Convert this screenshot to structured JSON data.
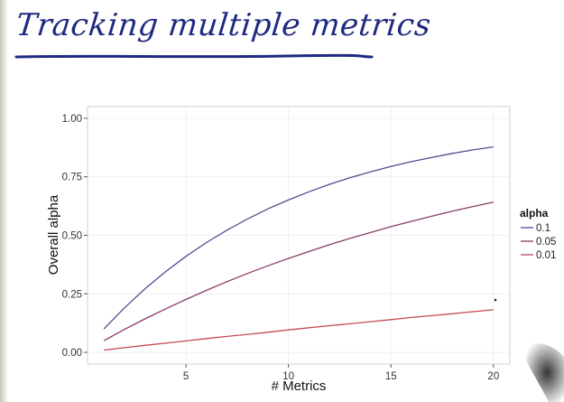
{
  "slide": {
    "title": "Tracking multiple metrics",
    "title_color": "#1f2a80"
  },
  "chart_data": {
    "type": "line",
    "title": "",
    "xlabel": "# Metrics",
    "ylabel": "Overall alpha",
    "xlim": [
      0.2,
      20.8
    ],
    "ylim": [
      -0.05,
      1.05
    ],
    "x_ticks": [
      5,
      10,
      15,
      20
    ],
    "y_ticks": [
      0.0,
      0.25,
      0.5,
      0.75,
      1.0
    ],
    "x_tick_labels": [
      "5",
      "10",
      "15",
      "20"
    ],
    "y_tick_labels": [
      "0.00",
      "0.25",
      "0.50",
      "0.75",
      "1.00"
    ],
    "grid": true,
    "legend": {
      "title": "alpha",
      "position": "right"
    },
    "x": [
      1,
      2,
      3,
      4,
      5,
      6,
      7,
      8,
      9,
      10,
      11,
      12,
      13,
      14,
      15,
      16,
      17,
      18,
      19,
      20
    ],
    "series": [
      {
        "name": "0.1",
        "color": "#4a4f8f",
        "values": [
          0.1,
          0.19,
          0.271,
          0.344,
          0.41,
          0.469,
          0.522,
          0.57,
          0.613,
          0.651,
          0.686,
          0.718,
          0.746,
          0.771,
          0.794,
          0.815,
          0.833,
          0.85,
          0.865,
          0.878
        ]
      },
      {
        "name": "0.05",
        "color": "#8a3d6a",
        "values": [
          0.05,
          0.098,
          0.143,
          0.185,
          0.226,
          0.265,
          0.302,
          0.337,
          0.37,
          0.401,
          0.431,
          0.46,
          0.487,
          0.512,
          0.537,
          0.56,
          0.582,
          0.603,
          0.623,
          0.642
        ]
      },
      {
        "name": "0.01",
        "color": "#c24a52",
        "values": [
          0.01,
          0.02,
          0.03,
          0.039,
          0.049,
          0.059,
          0.068,
          0.077,
          0.086,
          0.096,
          0.105,
          0.114,
          0.122,
          0.131,
          0.14,
          0.149,
          0.157,
          0.165,
          0.174,
          0.182
        ]
      }
    ]
  }
}
